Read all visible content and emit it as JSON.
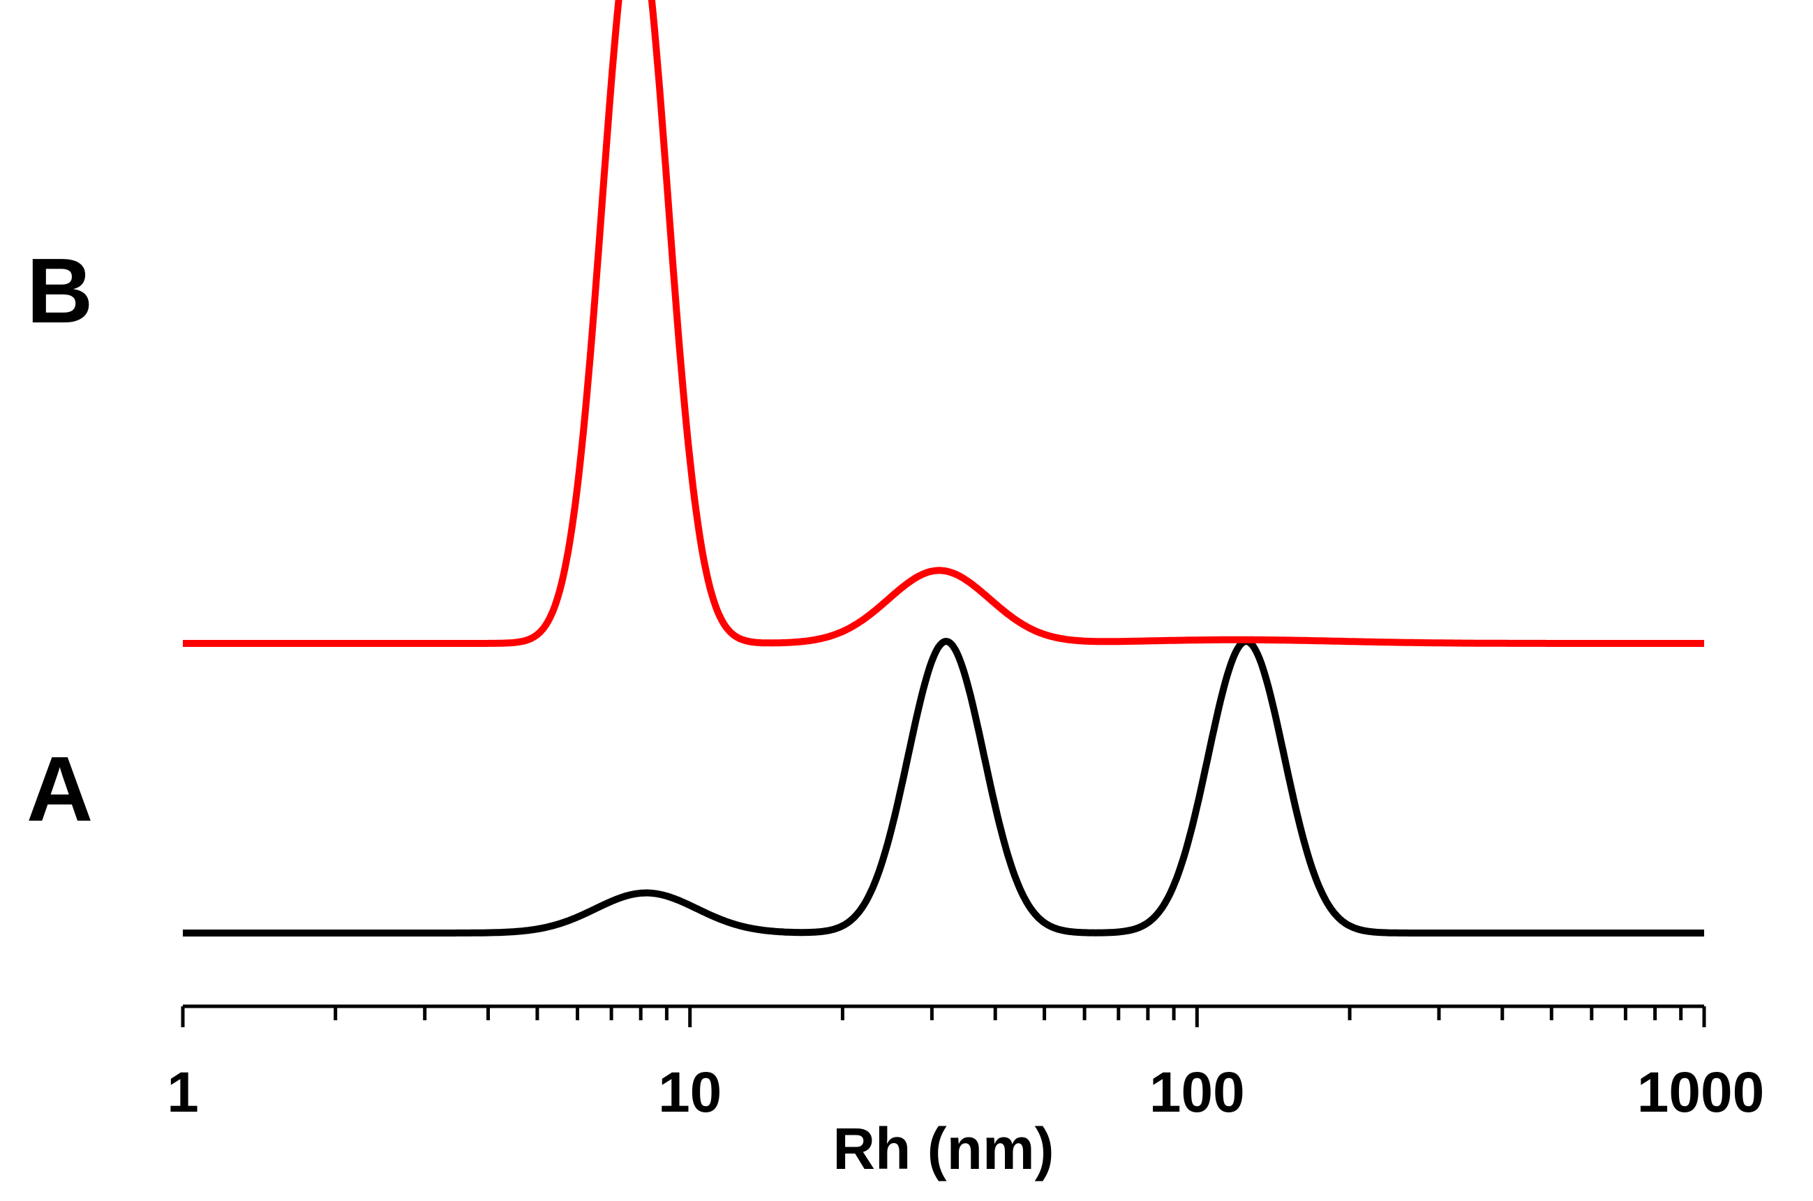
{
  "chart_data": {
    "type": "line",
    "xlabel": "Rh (nm)",
    "ylabel": "",
    "x_scale": "log",
    "xlim": [
      1,
      1000
    ],
    "x_ticks": [
      "1",
      "10",
      "100",
      "1000"
    ],
    "grid": false,
    "series": [
      {
        "name": "A",
        "color": "#000000",
        "peaks": [
          {
            "center": 8.2,
            "height": 0.055,
            "width": 0.1
          },
          {
            "center": 32,
            "height": 0.4,
            "width": 0.075
          },
          {
            "center": 125,
            "height": 0.4,
            "width": 0.075
          }
        ]
      },
      {
        "name": "B",
        "color": "#ff0000",
        "peaks": [
          {
            "center": 7.8,
            "height": 1.0,
            "width": 0.065
          },
          {
            "center": 31,
            "height": 0.1,
            "width": 0.1
          },
          {
            "center": 120,
            "height": 0.005,
            "width": 0.2
          }
        ]
      }
    ]
  }
}
